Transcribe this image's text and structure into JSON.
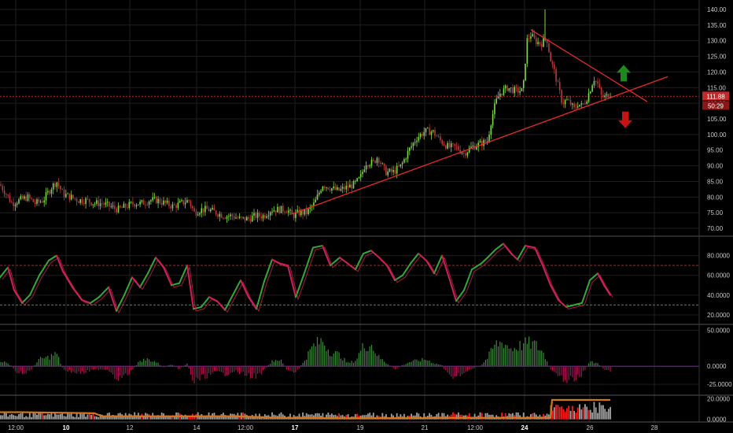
{
  "chart_data": [
    {
      "type": "candlestick",
      "panel": "price",
      "yticks": [
        "140.00",
        "135.00",
        "130.00",
        "125.00",
        "120.00",
        "115.00",
        "110.00",
        "105.00",
        "100.00",
        "95.00",
        "90.00",
        "85.00",
        "80.00",
        "75.00",
        "70.00"
      ],
      "ylim": [
        68,
        142
      ],
      "current_price_label": "111.88",
      "countdown_label": "50:29",
      "current_price": 111.88,
      "reference_line_level": 112.2,
      "close_path": [
        [
          0,
          84
        ],
        [
          8,
          81
        ],
        [
          15,
          78
        ],
        [
          25,
          79
        ],
        [
          35,
          80
        ],
        [
          45,
          78
        ],
        [
          55,
          79
        ],
        [
          65,
          83
        ],
        [
          72,
          85
        ],
        [
          80,
          81
        ],
        [
          90,
          80
        ],
        [
          100,
          79
        ],
        [
          110,
          79
        ],
        [
          120,
          78
        ],
        [
          130,
          78
        ],
        [
          140,
          77
        ],
        [
          150,
          76
        ],
        [
          160,
          77
        ],
        [
          170,
          78
        ],
        [
          180,
          78
        ],
        [
          190,
          79
        ],
        [
          200,
          79
        ],
        [
          210,
          78
        ],
        [
          220,
          77
        ],
        [
          230,
          78
        ],
        [
          240,
          79
        ],
        [
          247,
          75
        ],
        [
          255,
          76
        ],
        [
          265,
          76
        ],
        [
          275,
          75
        ],
        [
          285,
          74
        ],
        [
          295,
          74
        ],
        [
          305,
          73
        ],
        [
          315,
          73
        ],
        [
          325,
          74
        ],
        [
          335,
          74
        ],
        [
          345,
          76
        ],
        [
          355,
          76
        ],
        [
          365,
          76
        ],
        [
          372,
          74
        ],
        [
          380,
          75
        ],
        [
          390,
          75
        ],
        [
          400,
          78
        ],
        [
          410,
          84
        ],
        [
          420,
          83
        ],
        [
          430,
          82
        ],
        [
          440,
          83
        ],
        [
          450,
          84
        ],
        [
          458,
          86
        ],
        [
          465,
          91
        ],
        [
          475,
          91
        ],
        [
          480,
          93
        ],
        [
          490,
          88
        ],
        [
          500,
          88
        ],
        [
          510,
          90
        ],
        [
          520,
          95
        ],
        [
          530,
          99
        ],
        [
          540,
          101
        ],
        [
          550,
          101
        ],
        [
          560,
          98
        ],
        [
          570,
          96
        ],
        [
          580,
          96
        ],
        [
          590,
          94
        ],
        [
          600,
          96
        ],
        [
          610,
          97
        ],
        [
          620,
          98
        ],
        [
          625,
          105
        ],
        [
          630,
          110
        ],
        [
          635,
          113
        ],
        [
          645,
          115
        ],
        [
          655,
          114
        ],
        [
          665,
          114
        ],
        [
          670,
          130
        ],
        [
          675,
          132
        ],
        [
          680,
          130
        ],
        [
          688,
          129
        ],
        [
          695,
          131
        ],
        [
          700,
          124
        ],
        [
          705,
          120
        ],
        [
          710,
          115
        ],
        [
          715,
          110
        ],
        [
          720,
          111
        ],
        [
          725,
          110
        ],
        [
          730,
          108
        ],
        [
          735,
          110
        ],
        [
          740,
          109
        ],
        [
          745,
          111
        ],
        [
          750,
          114
        ],
        [
          755,
          118
        ],
        [
          760,
          116
        ],
        [
          765,
          112
        ],
        [
          770,
          112
        ],
        [
          775,
          113
        ]
      ],
      "trendlines": [
        {
          "name": "support",
          "points": [
            [
              370,
              74.5
            ],
            [
              849,
              118.5
            ]
          ]
        },
        {
          "name": "resistance",
          "points": [
            [
              675,
              133.5
            ],
            [
              823,
              110.5
            ]
          ]
        }
      ],
      "annotations": [
        {
          "type": "arrow-up",
          "color": "#1e8a1e",
          "x": 793,
          "y": 119.5
        },
        {
          "type": "arrow-down",
          "color": "#c41414",
          "x": 795,
          "y": 104.8
        }
      ]
    },
    {
      "type": "line",
      "panel": "oscillator",
      "yticks": [
        "80.0000",
        "60.0000",
        "40.0000",
        "20.0000"
      ],
      "ylim": [
        12,
        98
      ],
      "upper_level": 70,
      "lower_level": 30,
      "values": [
        [
          0,
          58
        ],
        [
          10,
          68
        ],
        [
          18,
          45
        ],
        [
          28,
          32
        ],
        [
          38,
          40
        ],
        [
          50,
          60
        ],
        [
          62,
          75
        ],
        [
          72,
          80
        ],
        [
          80,
          64
        ],
        [
          92,
          48
        ],
        [
          104,
          35
        ],
        [
          115,
          32
        ],
        [
          126,
          38
        ],
        [
          138,
          48
        ],
        [
          148,
          24
        ],
        [
          158,
          40
        ],
        [
          168,
          58
        ],
        [
          178,
          48
        ],
        [
          188,
          62
        ],
        [
          198,
          78
        ],
        [
          208,
          68
        ],
        [
          218,
          50
        ],
        [
          228,
          52
        ],
        [
          238,
          70
        ],
        [
          246,
          26
        ],
        [
          256,
          28
        ],
        [
          266,
          38
        ],
        [
          276,
          34
        ],
        [
          286,
          25
        ],
        [
          296,
          40
        ],
        [
          306,
          55
        ],
        [
          316,
          38
        ],
        [
          326,
          26
        ],
        [
          336,
          54
        ],
        [
          346,
          76
        ],
        [
          356,
          72
        ],
        [
          366,
          70
        ],
        [
          376,
          38
        ],
        [
          386,
          60
        ],
        [
          398,
          88
        ],
        [
          410,
          90
        ],
        [
          420,
          70
        ],
        [
          432,
          78
        ],
        [
          442,
          72
        ],
        [
          452,
          66
        ],
        [
          462,
          82
        ],
        [
          472,
          85
        ],
        [
          482,
          78
        ],
        [
          492,
          70
        ],
        [
          502,
          55
        ],
        [
          512,
          60
        ],
        [
          522,
          72
        ],
        [
          532,
          82
        ],
        [
          542,
          75
        ],
        [
          552,
          62
        ],
        [
          562,
          80
        ],
        [
          572,
          55
        ],
        [
          580,
          34
        ],
        [
          590,
          45
        ],
        [
          600,
          66
        ],
        [
          612,
          72
        ],
        [
          620,
          78
        ],
        [
          630,
          86
        ],
        [
          640,
          92
        ],
        [
          650,
          82
        ],
        [
          658,
          76
        ],
        [
          668,
          90
        ],
        [
          680,
          88
        ],
        [
          690,
          70
        ],
        [
          700,
          50
        ],
        [
          710,
          35
        ],
        [
          720,
          28
        ],
        [
          730,
          30
        ],
        [
          740,
          32
        ],
        [
          750,
          55
        ],
        [
          760,
          62
        ],
        [
          768,
          50
        ],
        [
          776,
          40
        ]
      ]
    },
    {
      "type": "histogram",
      "panel": "momentum",
      "yticks": [
        "50.0000",
        "0.0000",
        "-25.0000"
      ],
      "ylim": [
        -38,
        56
      ],
      "envelope": [
        [
          0,
          10
        ],
        [
          10,
          5
        ],
        [
          20,
          -8
        ],
        [
          30,
          -15
        ],
        [
          40,
          -5
        ],
        [
          50,
          12
        ],
        [
          60,
          15
        ],
        [
          72,
          22
        ],
        [
          80,
          -5
        ],
        [
          92,
          -10
        ],
        [
          104,
          -12
        ],
        [
          115,
          -8
        ],
        [
          126,
          -5
        ],
        [
          138,
          -6
        ],
        [
          148,
          -20
        ],
        [
          158,
          -18
        ],
        [
          168,
          -8
        ],
        [
          178,
          10
        ],
        [
          188,
          12
        ],
        [
          198,
          8
        ],
        [
          208,
          -2
        ],
        [
          218,
          4
        ],
        [
          228,
          -5
        ],
        [
          238,
          5
        ],
        [
          246,
          -28
        ],
        [
          256,
          -20
        ],
        [
          266,
          -15
        ],
        [
          276,
          -10
        ],
        [
          286,
          -14
        ],
        [
          296,
          -8
        ],
        [
          306,
          -12
        ],
        [
          316,
          -16
        ],
        [
          326,
          -18
        ],
        [
          336,
          -8
        ],
        [
          346,
          10
        ],
        [
          356,
          12
        ],
        [
          366,
          -8
        ],
        [
          376,
          -12
        ],
        [
          386,
          8
        ],
        [
          398,
          35
        ],
        [
          410,
          45
        ],
        [
          420,
          25
        ],
        [
          432,
          20
        ],
        [
          442,
          5
        ],
        [
          452,
          10
        ],
        [
          462,
          35
        ],
        [
          472,
          38
        ],
        [
          482,
          15
        ],
        [
          492,
          5
        ],
        [
          502,
          -5
        ],
        [
          512,
          2
        ],
        [
          522,
          8
        ],
        [
          532,
          10
        ],
        [
          542,
          12
        ],
        [
          552,
          5
        ],
        [
          562,
          2
        ],
        [
          572,
          -20
        ],
        [
          580,
          -15
        ],
        [
          590,
          -12
        ],
        [
          600,
          -5
        ],
        [
          612,
          2
        ],
        [
          620,
          15
        ],
        [
          630,
          38
        ],
        [
          640,
          42
        ],
        [
          650,
          30
        ],
        [
          660,
          35
        ],
        [
          670,
          40
        ],
        [
          680,
          38
        ],
        [
          690,
          25
        ],
        [
          700,
          -5
        ],
        [
          710,
          -20
        ],
        [
          720,
          -22
        ],
        [
          730,
          -25
        ],
        [
          740,
          -15
        ],
        [
          750,
          8
        ],
        [
          760,
          5
        ],
        [
          768,
          -5
        ],
        [
          776,
          -8
        ]
      ]
    },
    {
      "type": "bar",
      "panel": "volume",
      "yticks": [
        "20.0000",
        "0.0000"
      ],
      "ylim": [
        -1,
        22
      ],
      "orange_line": [
        [
          0,
          7
        ],
        [
          30,
          7
        ],
        [
          120,
          6
        ],
        [
          130,
          3
        ],
        [
          300,
          3
        ],
        [
          360,
          1.5
        ],
        [
          440,
          1
        ],
        [
          600,
          1.5
        ],
        [
          700,
          1.5
        ],
        [
          702,
          19
        ],
        [
          776,
          19
        ]
      ]
    }
  ],
  "x_axis": {
    "labels": [
      {
        "x": 20,
        "text": "12:00",
        "bold": false
      },
      {
        "x": 84,
        "text": "10",
        "bold": true
      },
      {
        "x": 165,
        "text": "12",
        "bold": false
      },
      {
        "x": 250,
        "text": "14",
        "bold": false
      },
      {
        "x": 312,
        "text": "12:00",
        "bold": false
      },
      {
        "x": 375,
        "text": "17",
        "bold": true
      },
      {
        "x": 458,
        "text": "19",
        "bold": false
      },
      {
        "x": 540,
        "text": "21",
        "bold": false
      },
      {
        "x": 604,
        "text": "12:00",
        "bold": false
      },
      {
        "x": 667,
        "text": "24",
        "bold": true
      },
      {
        "x": 750,
        "text": "26",
        "bold": false
      },
      {
        "x": 832,
        "text": "28",
        "bold": false
      }
    ]
  },
  "colors": {
    "background": "#000000",
    "grid": "#1e1e1e",
    "up": "#7fd84a",
    "down": "#b83a3a",
    "trendline": "#e52a2a",
    "reference": "#c62828",
    "osc_up": "#33aa33",
    "osc_down": "#cc2255",
    "osc_upper": "#b82020",
    "osc_lower": "#3b9a2c",
    "hist_pos": "#3a8a3a",
    "hist_neg": "#a8124e",
    "vol_gray": "#a0a0a0",
    "vol_red": "#ff1a1a",
    "orange": "#d7751c",
    "axis_text": "#c8c8c8",
    "panel_border": "#555555",
    "zero_line": "#6a1a8a"
  }
}
